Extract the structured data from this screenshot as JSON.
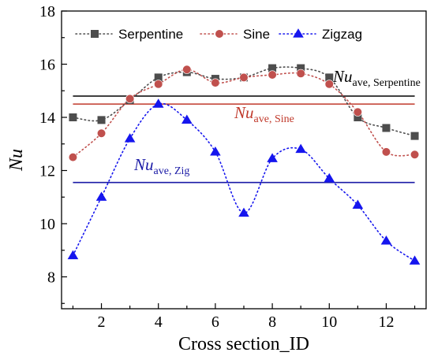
{
  "chart_data": {
    "type": "scatter",
    "xlabel": "Cross section_ID",
    "ylabel": "Nu",
    "xlim": [
      0.6,
      13.4
    ],
    "ylim": [
      6.8,
      18
    ],
    "xticks": [
      2,
      4,
      6,
      8,
      10,
      12
    ],
    "yticks": [
      8,
      10,
      12,
      14,
      16,
      18
    ],
    "legend_position": "top",
    "series": [
      {
        "name": "Serpentine",
        "color": "#4d4d4d",
        "marker": "square",
        "x": [
          1,
          2,
          3,
          4,
          5,
          6,
          7,
          8,
          9,
          10,
          11,
          12,
          13
        ],
        "y": [
          14.0,
          13.9,
          14.65,
          15.5,
          15.7,
          15.45,
          15.5,
          15.85,
          15.85,
          15.5,
          14.0,
          13.6,
          13.3
        ]
      },
      {
        "name": "Sine",
        "color": "#c0504d",
        "marker": "circle",
        "x": [
          1,
          2,
          3,
          4,
          5,
          6,
          7,
          8,
          9,
          10,
          11,
          12,
          13
        ],
        "y": [
          12.5,
          13.4,
          14.7,
          15.25,
          15.8,
          15.3,
          15.5,
          15.6,
          15.65,
          15.25,
          14.2,
          12.7,
          12.6
        ]
      },
      {
        "name": "Zigzag",
        "color": "#1515ee",
        "marker": "triangle",
        "x": [
          1,
          2,
          3,
          4,
          5,
          6,
          7,
          8,
          9,
          10,
          11,
          12,
          13
        ],
        "y": [
          8.8,
          11.0,
          13.2,
          14.5,
          13.9,
          12.7,
          10.4,
          12.45,
          12.8,
          11.7,
          10.7,
          9.35,
          8.6
        ]
      }
    ],
    "reference_lines": [
      {
        "label_main": "Nu",
        "label_sub": "ave, Serpentine",
        "value": 14.8,
        "color": "#000000"
      },
      {
        "label_main": "Nu",
        "label_sub": "ave, Sine",
        "value": 14.5,
        "color": "#c0392b"
      },
      {
        "label_main": "Nu",
        "label_sub": "ave, Zig",
        "value": 11.55,
        "color": "#1a1aa6"
      }
    ]
  }
}
